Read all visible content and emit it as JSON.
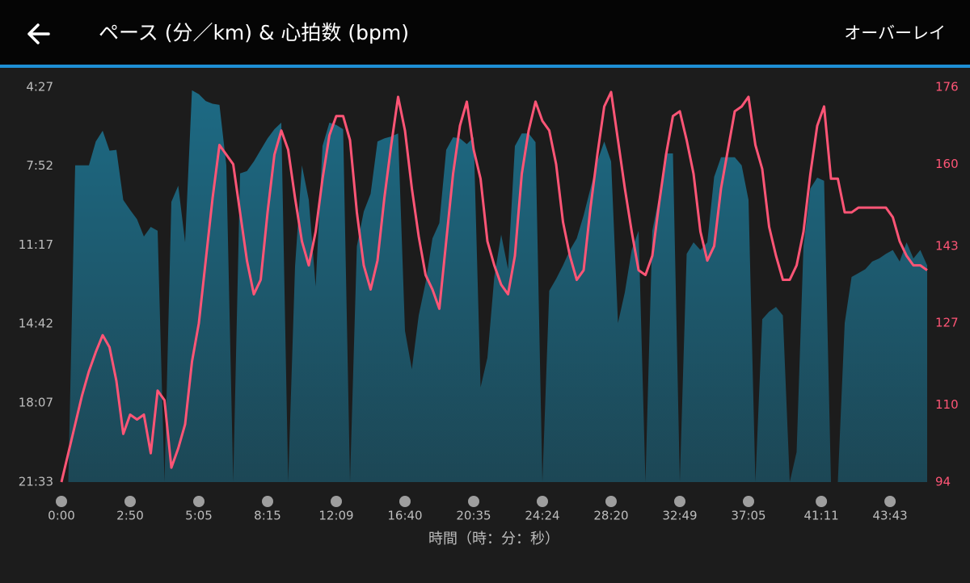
{
  "header": {
    "title": "ペース (分／km) & 心拍数 (bpm)",
    "action": "オーバーレイ"
  },
  "chart_data": {
    "type": "line",
    "x_label": "時間（時：分：秒）",
    "x": [
      0,
      1,
      2,
      3,
      4,
      5,
      6,
      7,
      8,
      9,
      10,
      11,
      12,
      13,
      14,
      15,
      16,
      17,
      18,
      19,
      20,
      21,
      22,
      23,
      24,
      25,
      26,
      27,
      28,
      29,
      30,
      31,
      32,
      33,
      34,
      35,
      36,
      37,
      38,
      39,
      40,
      41,
      42,
      43,
      44,
      45,
      46,
      47,
      48,
      49,
      50,
      51,
      52,
      53,
      54,
      55,
      56,
      57,
      58,
      59,
      60,
      61,
      62,
      63,
      64,
      65,
      66,
      67,
      68,
      69,
      70,
      71,
      72,
      73,
      74,
      75,
      76,
      77,
      78,
      79,
      80,
      81,
      82,
      83,
      84,
      85,
      86,
      87,
      88,
      89,
      90,
      91,
      92,
      93,
      94,
      95,
      96,
      97,
      98,
      99,
      100,
      101,
      102,
      103,
      104,
      105,
      106,
      107,
      108,
      109,
      110,
      111,
      112,
      113,
      114,
      115,
      116,
      117,
      118,
      119,
      120,
      121,
      122,
      123,
      124,
      125,
      126
    ],
    "xlim": [
      0,
      126
    ],
    "xticks": [
      {
        "value": 0,
        "label": "0:00"
      },
      {
        "value": 10,
        "label": "2:50"
      },
      {
        "value": 20,
        "label": "5:05"
      },
      {
        "value": 30,
        "label": "8:15"
      },
      {
        "value": 40,
        "label": "12:09"
      },
      {
        "value": 50,
        "label": "16:40"
      },
      {
        "value": 60,
        "label": "20:35"
      },
      {
        "value": 70,
        "label": "24:24"
      },
      {
        "value": 80,
        "label": "28:20"
      },
      {
        "value": 90,
        "label": "32:49"
      },
      {
        "value": 100,
        "label": "37:05"
      },
      {
        "value": 110.6,
        "label": "41:11"
      },
      {
        "value": 120.6,
        "label": "43:43"
      }
    ],
    "ylim": [
      1293,
      267
    ],
    "yticks": [
      {
        "value": 267,
        "label": "4:27"
      },
      {
        "value": 472,
        "label": "7:52"
      },
      {
        "value": 677,
        "label": "11:17"
      },
      {
        "value": 882,
        "label": "14:42"
      },
      {
        "value": 1087,
        "label": "18:07"
      },
      {
        "value": 1293,
        "label": "21:33"
      }
    ],
    "y2lim": [
      94,
      176
    ],
    "y2ticks": [
      176,
      160,
      143,
      127,
      110,
      94
    ],
    "series": [
      {
        "type": "area",
        "color": "#1d6a84",
        "values": [
          1293,
          1293,
          470,
          470,
          470,
          408,
          380,
          432,
          430,
          560,
          586,
          610,
          655,
          630,
          640,
          1293,
          565,
          523,
          670,
          275,
          285,
          303,
          310,
          313,
          470,
          1293,
          491,
          485,
          460,
          430,
          400,
          376,
          359,
          1293,
          733,
          470,
          560,
          785,
          420,
          359,
          365,
          376,
          1293,
          680,
          590,
          544,
          408,
          400,
          395,
          387,
          900,
          1000,
          860,
          775,
          660,
          620,
          430,
          397,
          400,
          415,
          397,
          1047,
          970,
          760,
          650,
          740,
          420,
          387,
          387,
          410,
          1293,
          796,
          765,
          730,
          690,
          660,
          600,
          530,
          460,
          408,
          460,
          880,
          800,
          690,
          640,
          1293,
          640,
          550,
          439,
          439,
          1293,
          700,
          670,
          690,
          670,
          500,
          449,
          449,
          449,
          470,
          560,
          1293,
          870,
          850,
          838,
          860,
          1293,
          1215,
          680,
          530,
          502,
          510,
          1293,
          1293,
          880,
          760,
          750,
          740,
          720,
          712,
          700,
          690,
          720,
          670,
          712,
          690,
          730
        ]
      },
      {
        "type": "line",
        "axis": "y2",
        "color": "#ff5576",
        "values": [
          94,
          100,
          106,
          112,
          117,
          121,
          124.5,
          122,
          115,
          104,
          108,
          107,
          108,
          100,
          113,
          111,
          97,
          101,
          106,
          119,
          127,
          140,
          153,
          164,
          162,
          160,
          150,
          140,
          133,
          136,
          150,
          162,
          167,
          163,
          153,
          144,
          139,
          146,
          157,
          166,
          170,
          170,
          165,
          150,
          139,
          134,
          140,
          153,
          164,
          174,
          167,
          155,
          145,
          137,
          134,
          130,
          144,
          158,
          168,
          173,
          163,
          157,
          144,
          139,
          135,
          133,
          141,
          158,
          167,
          173,
          169,
          167,
          160,
          148,
          141,
          136,
          138,
          151,
          162,
          172,
          175,
          165,
          155,
          146,
          138,
          137,
          141,
          152,
          162,
          170,
          171,
          165,
          158,
          146,
          140,
          143,
          155,
          163,
          171,
          172,
          174,
          164,
          159,
          147,
          141,
          136,
          136,
          139,
          146,
          158,
          168,
          172,
          157,
          157,
          150,
          150,
          151,
          151,
          151,
          151,
          151,
          149,
          144,
          141,
          139,
          139,
          138
        ]
      }
    ]
  }
}
